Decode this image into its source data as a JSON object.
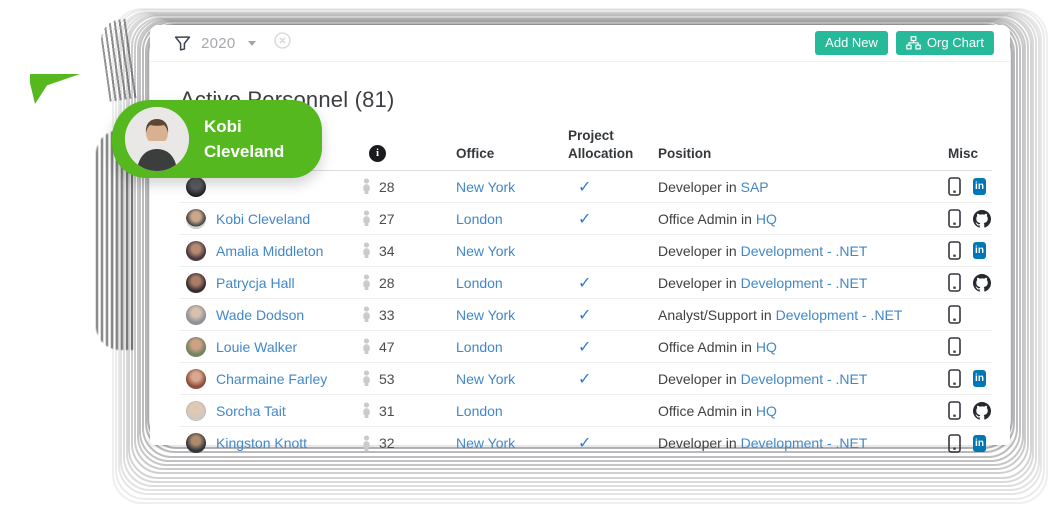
{
  "colors": {
    "accent_teal": "#26b99a",
    "tooltip_green": "#55b81f",
    "link_blue": "#4287c8",
    "check_blue": "#2f79d8",
    "linkedin_blue": "#0077b5",
    "github_dark": "#24292f"
  },
  "filter_bar": {
    "year": "2020"
  },
  "toolbar": {
    "add_new_label": "Add New",
    "org_chart_label": "Org Chart"
  },
  "page": {
    "title": "Active Personnel (81)"
  },
  "tooltip": {
    "line1": "Kobi",
    "line2": "Cleveland"
  },
  "table": {
    "headers": {
      "office": "Office",
      "allocation": "Project\nAllocation",
      "position": "Position",
      "misc": "Misc"
    },
    "check_glyph": "✓",
    "linkedin_glyph": "in"
  },
  "people": [
    {
      "name": "",
      "age": "28",
      "office": "New York",
      "allocated": true,
      "role": "Developer in",
      "team": "SAP"
    },
    {
      "name": "Kobi Cleveland",
      "age": "27",
      "office": "London",
      "allocated": true,
      "role": "Office Admin in",
      "team": "HQ"
    },
    {
      "name": "Amalia Middleton",
      "age": "34",
      "office": "New York",
      "allocated": false,
      "role": "Developer in",
      "team": "Development - .NET"
    },
    {
      "name": "Patrycja Hall",
      "age": "28",
      "office": "London",
      "allocated": true,
      "role": "Developer in",
      "team": "Development - .NET"
    },
    {
      "name": "Wade Dodson",
      "age": "33",
      "office": "New York",
      "allocated": true,
      "role": "Analyst/Support in",
      "team": "Development - .NET"
    },
    {
      "name": "Louie Walker",
      "age": "47",
      "office": "London",
      "allocated": true,
      "role": "Office Admin in",
      "team": "HQ"
    },
    {
      "name": "Charmaine Farley",
      "age": "53",
      "office": "New York",
      "allocated": true,
      "role": "Developer in",
      "team": "Development - .NET"
    },
    {
      "name": "Sorcha Tait",
      "age": "31",
      "office": "London",
      "allocated": false,
      "role": "Office Admin in",
      "team": "HQ"
    },
    {
      "name": "Kingston Knott",
      "age": "32",
      "office": "New York",
      "allocated": true,
      "role": "Developer in",
      "team": "Development - .NET"
    }
  ]
}
